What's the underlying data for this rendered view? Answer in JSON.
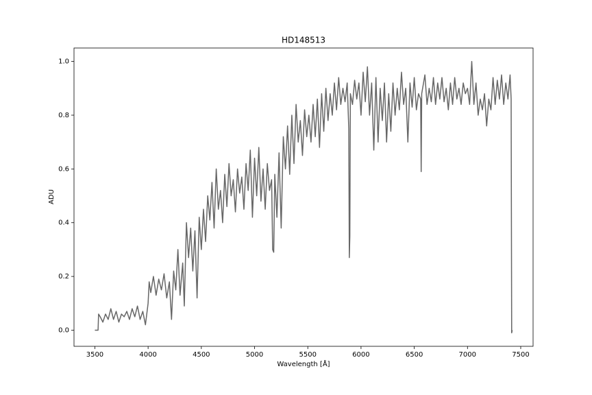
{
  "chart_data": {
    "type": "line",
    "title": "HD148513",
    "xlabel": "Wavelength [Å]",
    "ylabel": "ADU",
    "x": [
      3500,
      3530,
      3535,
      3550,
      3575,
      3600,
      3625,
      3650,
      3675,
      3700,
      3725,
      3750,
      3775,
      3800,
      3825,
      3850,
      3875,
      3900,
      3925,
      3950,
      3975,
      4000,
      4010,
      4025,
      4050,
      4075,
      4100,
      4125,
      4150,
      4175,
      4200,
      4220,
      4240,
      4260,
      4280,
      4300,
      4325,
      4340,
      4360,
      4380,
      4400,
      4420,
      4440,
      4460,
      4480,
      4500,
      4520,
      4540,
      4560,
      4580,
      4600,
      4620,
      4640,
      4660,
      4680,
      4700,
      4720,
      4740,
      4760,
      4780,
      4800,
      4820,
      4840,
      4860,
      4880,
      4900,
      4920,
      4940,
      4960,
      4980,
      5000,
      5020,
      5040,
      5060,
      5080,
      5100,
      5120,
      5140,
      5160,
      5170,
      5180,
      5190,
      5210,
      5230,
      5250,
      5270,
      5290,
      5310,
      5330,
      5350,
      5370,
      5390,
      5410,
      5430,
      5450,
      5470,
      5490,
      5510,
      5530,
      5550,
      5570,
      5590,
      5610,
      5630,
      5650,
      5670,
      5690,
      5710,
      5730,
      5750,
      5770,
      5790,
      5810,
      5830,
      5850,
      5870,
      5885,
      5890,
      5895,
      5900,
      5920,
      5940,
      5960,
      5980,
      6000,
      6020,
      6040,
      6060,
      6080,
      6100,
      6120,
      6140,
      6160,
      6180,
      6200,
      6220,
      6240,
      6260,
      6280,
      6300,
      6320,
      6340,
      6360,
      6380,
      6400,
      6420,
      6440,
      6460,
      6480,
      6500,
      6520,
      6540,
      6560,
      6565,
      6570,
      6600,
      6620,
      6640,
      6660,
      6680,
      6700,
      6720,
      6740,
      6760,
      6780,
      6800,
      6820,
      6840,
      6860,
      6880,
      6900,
      6920,
      6940,
      6960,
      6980,
      7000,
      7020,
      7040,
      7060,
      7080,
      7100,
      7120,
      7140,
      7160,
      7180,
      7200,
      7220,
      7240,
      7260,
      7280,
      7300,
      7320,
      7340,
      7360,
      7380,
      7400,
      7410,
      7415,
      7420
    ],
    "series": [
      {
        "color": "#666666",
        "values": [
          0,
          0,
          0.06,
          0.05,
          0.03,
          0.06,
          0.04,
          0.08,
          0.04,
          0.07,
          0.03,
          0.06,
          0.05,
          0.07,
          0.04,
          0.08,
          0.05,
          0.09,
          0.04,
          0.07,
          0.02,
          0.1,
          0.18,
          0.14,
          0.2,
          0.13,
          0.19,
          0.15,
          0.21,
          0.12,
          0.18,
          0.04,
          0.22,
          0.15,
          0.3,
          0.13,
          0.25,
          0.09,
          0.4,
          0.27,
          0.38,
          0.22,
          0.37,
          0.12,
          0.42,
          0.3,
          0.45,
          0.33,
          0.5,
          0.41,
          0.55,
          0.38,
          0.6,
          0.45,
          0.52,
          0.4,
          0.58,
          0.46,
          0.62,
          0.5,
          0.56,
          0.44,
          0.6,
          0.51,
          0.57,
          0.45,
          0.62,
          0.52,
          0.67,
          0.42,
          0.64,
          0.5,
          0.68,
          0.48,
          0.6,
          0.45,
          0.62,
          0.52,
          0.56,
          0.3,
          0.29,
          0.58,
          0.42,
          0.66,
          0.38,
          0.72,
          0.6,
          0.76,
          0.58,
          0.8,
          0.62,
          0.84,
          0.7,
          0.78,
          0.65,
          0.82,
          0.72,
          0.8,
          0.7,
          0.84,
          0.72,
          0.86,
          0.68,
          0.88,
          0.74,
          0.9,
          0.78,
          0.88,
          0.8,
          0.92,
          0.82,
          0.94,
          0.84,
          0.9,
          0.85,
          0.92,
          0.75,
          0.27,
          0.35,
          0.88,
          0.84,
          0.93,
          0.86,
          0.92,
          0.8,
          0.96,
          0.85,
          0.98,
          0.8,
          0.92,
          0.67,
          0.94,
          0.7,
          0.9,
          0.78,
          0.92,
          0.7,
          0.88,
          0.74,
          0.92,
          0.8,
          0.9,
          0.82,
          0.96,
          0.84,
          0.9,
          0.7,
          0.92,
          0.83,
          0.94,
          0.82,
          0.88,
          0.86,
          0.59,
          0.88,
          0.95,
          0.84,
          0.9,
          0.85,
          0.94,
          0.84,
          0.92,
          0.86,
          0.94,
          0.85,
          0.9,
          0.82,
          0.92,
          0.84,
          0.94,
          0.86,
          0.9,
          0.84,
          0.92,
          0.88,
          0.9,
          0.84,
          1.0,
          0.84,
          0.92,
          0.8,
          0.86,
          0.82,
          0.88,
          0.76,
          0.86,
          0.82,
          0.94,
          0.84,
          0.93,
          0.86,
          0.95,
          0.84,
          0.92,
          0.86,
          0.95,
          0.86,
          -0.01,
          0
        ]
      }
    ],
    "xlim": [
      3304,
      7616
    ],
    "ylim": [
      -0.06,
      1.05
    ],
    "xticks": [
      3500,
      4000,
      4500,
      5000,
      5500,
      6000,
      6500,
      7000,
      7500
    ],
    "yticks": [
      {
        "value": 0,
        "label": "0.0"
      },
      0.2,
      0.4,
      0.6,
      0.8,
      {
        "value": 1,
        "label": "1.0"
      }
    ]
  }
}
